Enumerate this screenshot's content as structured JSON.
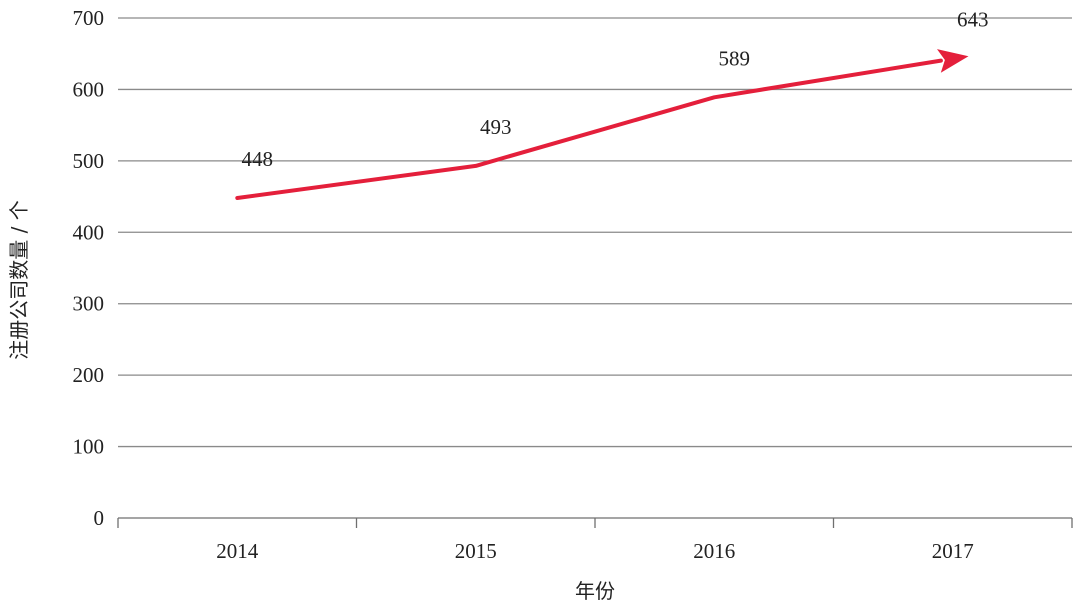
{
  "chart_data": {
    "type": "line",
    "categories": [
      "2014",
      "2015",
      "2016",
      "2017"
    ],
    "series": [
      {
        "values": [
          448,
          493,
          589,
          643
        ],
        "color": "#e41f3b"
      }
    ],
    "data_labels": [
      "448",
      "493",
      "589",
      "643"
    ],
    "xlabel": "年份",
    "ylabel": "注册公司数量 / 个",
    "ylim": [
      0,
      700
    ],
    "yticks": [
      0,
      100,
      200,
      300,
      400,
      500,
      600,
      700
    ],
    "grid": "horizontal",
    "arrow_at_end": true
  }
}
